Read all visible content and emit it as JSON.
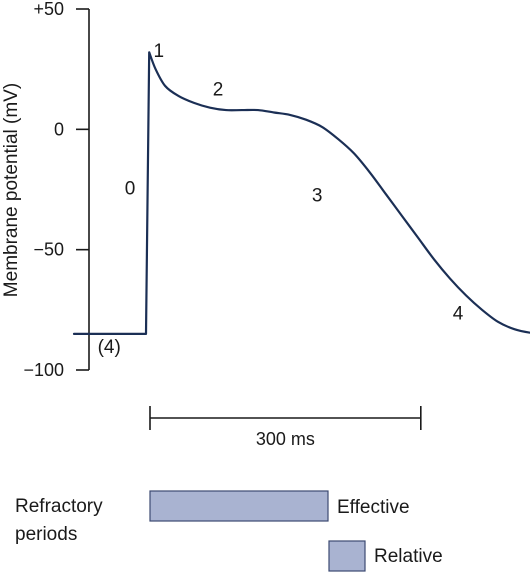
{
  "colors": {
    "line": "#1b2f55",
    "axis": "#1a1a1a",
    "bar_fill": "#a9b3d1",
    "bar_stroke": "#3c4a72"
  },
  "chart_data": {
    "type": "line",
    "title": "",
    "ylabel": "Membrane potential (mV)",
    "xlabel": "",
    "ylim": [
      -100,
      50
    ],
    "yticks": [
      {
        "value": 50,
        "label": "+50"
      },
      {
        "value": 0,
        "label": "0"
      },
      {
        "value": -50,
        "label": "−50"
      },
      {
        "value": -100,
        "label": "−100"
      }
    ],
    "time_unit": "ms",
    "series": [
      {
        "x": [
          -45,
          0,
          2,
          6,
          12,
          20,
          30,
          40,
          50,
          60,
          70,
          80,
          90,
          100,
          110,
          120,
          130,
          140,
          150,
          160,
          170,
          180,
          190,
          200,
          210,
          220,
          230,
          240,
          250,
          260,
          270,
          280,
          290,
          300,
          310,
          320,
          340,
          360,
          380
        ],
        "y": [
          -85,
          -85,
          32,
          25,
          18,
          14,
          11,
          9,
          8,
          8,
          8,
          7,
          6,
          4,
          1,
          -4,
          -10,
          -18,
          -27,
          -36,
          -45,
          -54,
          -62,
          -69,
          -75,
          -80,
          -83,
          -84.5,
          -85,
          -85,
          -85,
          -85,
          -85,
          -85,
          -85,
          -85,
          -85,
          -85,
          -85
        ]
      }
    ],
    "phase_labels": [
      {
        "text": "0",
        "x": -10,
        "y": -27
      },
      {
        "text": "1",
        "x": 8,
        "y": 30
      },
      {
        "text": "2",
        "x": 45,
        "y": 14
      },
      {
        "text": "3",
        "x": 107,
        "y": -30
      },
      {
        "text": "4",
        "x": 195,
        "y": -79
      },
      {
        "text": "(4)",
        "x": -23,
        "y": -93
      }
    ],
    "scale_bar": {
      "label": "300 ms",
      "start": 0,
      "end": 168
    }
  },
  "legend": {
    "heading_line1": "Refractory",
    "heading_line2": "periods",
    "effective_label": "Effective",
    "relative_label": "Relative"
  }
}
